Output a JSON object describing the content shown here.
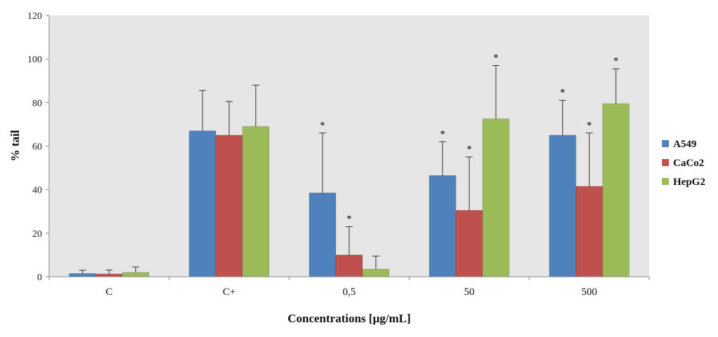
{
  "chart_data": {
    "type": "bar",
    "categories": [
      "C",
      "C+",
      "0,5",
      "50",
      "500"
    ],
    "series": [
      {
        "name": "A549",
        "color": "#4F81BD",
        "values": [
          1.5,
          67,
          38.5,
          46.5,
          65
        ],
        "errors": [
          1.5,
          18.5,
          27.5,
          15.5,
          16
        ],
        "significant": [
          false,
          false,
          true,
          true,
          true
        ]
      },
      {
        "name": "CaCo2",
        "color": "#C0504D",
        "values": [
          1.3,
          65,
          10,
          30.5,
          41.5
        ],
        "errors": [
          1.8,
          15.5,
          13,
          24.5,
          24.5
        ],
        "significant": [
          false,
          false,
          true,
          true,
          true
        ]
      },
      {
        "name": "HepG2",
        "color": "#9BBB59",
        "values": [
          2,
          69,
          3.5,
          72.5,
          79.5
        ],
        "errors": [
          2.5,
          19,
          6,
          24.5,
          16
        ],
        "significant": [
          false,
          false,
          false,
          true,
          true
        ]
      }
    ],
    "xlabel": "Concentrations [µg/mL]",
    "ylabel": "% tail",
    "ylim": [
      0,
      120
    ],
    "yticks": [
      0,
      20,
      40,
      60,
      80,
      100,
      120
    ],
    "significance_marker": "*",
    "grid": false,
    "plot_background": "#E6E6E6",
    "legend_position": "right"
  }
}
